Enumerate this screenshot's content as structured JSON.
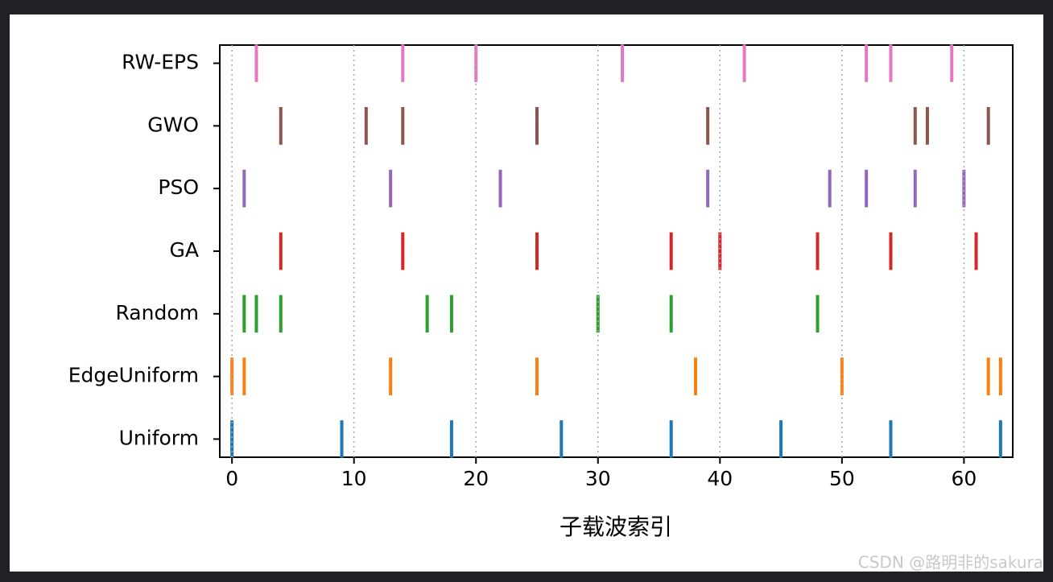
{
  "chart_data": {
    "type": "eventplot",
    "xlabel": "子载波索引",
    "xlim": [
      -1,
      64
    ],
    "xticks": [
      0,
      10,
      20,
      30,
      40,
      50,
      60
    ],
    "grid": true,
    "series": [
      {
        "name": "Uniform",
        "color": "#1f77b4",
        "values": [
          0,
          9,
          18,
          27,
          36,
          45,
          54,
          63
        ]
      },
      {
        "name": "EdgeUniform",
        "color": "#ff7f0e",
        "values": [
          0,
          1,
          13,
          25,
          38,
          50,
          62,
          63
        ]
      },
      {
        "name": "Random",
        "color": "#2ca02c",
        "values": [
          1,
          2,
          4,
          16,
          18,
          30,
          36,
          48
        ]
      },
      {
        "name": "GA",
        "color": "#d62728",
        "values": [
          4,
          14,
          25,
          36,
          40,
          48,
          54,
          61
        ]
      },
      {
        "name": "PSO",
        "color": "#9467bd",
        "values": [
          1,
          13,
          22,
          39,
          49,
          52,
          56,
          60
        ]
      },
      {
        "name": "GWO",
        "color": "#8c564b",
        "values": [
          4,
          11,
          14,
          25,
          39,
          56,
          57,
          62
        ]
      },
      {
        "name": "RW-EPS",
        "color": "#e377c2",
        "values": [
          2,
          14,
          20,
          32,
          42,
          52,
          54,
          59
        ]
      }
    ]
  },
  "watermark": "CSDN @路明非的sakura"
}
